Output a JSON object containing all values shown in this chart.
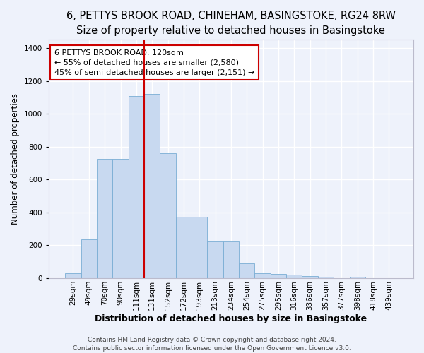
{
  "title1": "6, PETTYS BROOK ROAD, CHINEHAM, BASINGSTOKE, RG24 8RW",
  "title2": "Size of property relative to detached houses in Basingstoke",
  "xlabel": "Distribution of detached houses by size in Basingstoke",
  "ylabel": "Number of detached properties",
  "bar_labels": [
    "29sqm",
    "49sqm",
    "70sqm",
    "90sqm",
    "111sqm",
    "131sqm",
    "152sqm",
    "172sqm",
    "193sqm",
    "213sqm",
    "234sqm",
    "254sqm",
    "275sqm",
    "295sqm",
    "316sqm",
    "336sqm",
    "357sqm",
    "377sqm",
    "398sqm",
    "418sqm",
    "439sqm"
  ],
  "bar_values": [
    30,
    235,
    725,
    725,
    1110,
    1120,
    760,
    375,
    375,
    225,
    225,
    90,
    30,
    25,
    20,
    15,
    10,
    0,
    10,
    0,
    0
  ],
  "bar_color": "#c8d9f0",
  "bar_edge_color": "#7aadd4",
  "vline_color": "#cc0000",
  "vline_x_index": 4.5,
  "ylim": [
    0,
    1450
  ],
  "annotation_text": "6 PETTYS BROOK ROAD: 120sqm\n← 55% of detached houses are smaller (2,580)\n45% of semi-detached houses are larger (2,151) →",
  "footer": "Contains HM Land Registry data © Crown copyright and database right 2024.\nContains public sector information licensed under the Open Government Licence v3.0.",
  "bg_color": "#eef2fb",
  "grid_color": "#ffffff",
  "title1_fontsize": 10.5,
  "title2_fontsize": 9.5,
  "xlabel_fontsize": 9,
  "ylabel_fontsize": 8.5,
  "tick_fontsize": 7.5,
  "annotation_fontsize": 8,
  "footer_fontsize": 6.5
}
